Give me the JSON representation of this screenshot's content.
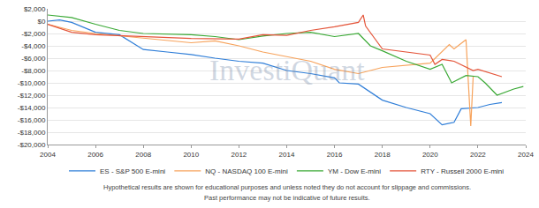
{
  "chart_data": {
    "type": "line",
    "annotations": [
      "InvestiQuant",
      "Hypothetical results are shown for educational purposes and unless noted they do not account for slippage and commissions.",
      "Past performance may not be indicative of future results."
    ],
    "series": [
      {
        "name": "ES - S&P 500 E-mini",
        "color": "#2f7ed8",
        "x": [
          2004,
          2004.5,
          2005,
          2006,
          2007,
          2008,
          2009,
          2010,
          2011,
          2012,
          2013,
          2014,
          2015,
          2016,
          2016.2,
          2017,
          2018,
          2019,
          2020,
          2020.5,
          2021,
          2021.3,
          2022,
          2022.5,
          2023
        ],
        "values": [
          0,
          200,
          -200,
          -1800,
          -2200,
          -4600,
          -5000,
          -5400,
          -6000,
          -6500,
          -6800,
          -8000,
          -8500,
          -9200,
          -10000,
          -10200,
          -12800,
          -14000,
          -15000,
          -16800,
          -16400,
          -14200,
          -14000,
          -13500,
          -13200
        ]
      },
      {
        "name": "NQ - NASDAQ 100 E-mini",
        "color": "#f7a35c",
        "x": [
          2004,
          2005,
          2006,
          2008,
          2010,
          2011,
          2012,
          2013,
          2014,
          2015,
          2016,
          2017,
          2018,
          2019,
          2020,
          2020.8,
          2021,
          2021.5,
          2021.7,
          2021.8
        ],
        "values": [
          -500,
          -1500,
          -2000,
          -2800,
          -3500,
          -3200,
          -4000,
          -5000,
          -5800,
          -6500,
          -7800,
          -8500,
          -7500,
          -7200,
          -6800,
          -3800,
          -4500,
          -3000,
          -17000,
          -9000
        ]
      },
      {
        "name": "YM - Dow E-mini",
        "color": "#3aa935",
        "x": [
          2004,
          2005,
          2006,
          2007,
          2008,
          2010,
          2011,
          2012,
          2013,
          2014,
          2015,
          2016,
          2017,
          2017.5,
          2018,
          2019,
          2020,
          2020.5,
          2020.9,
          2021.5,
          2022,
          2022.3,
          2022.8,
          2023.5,
          2023.9
        ],
        "values": [
          1000,
          600,
          -500,
          -1500,
          -2000,
          -2200,
          -2500,
          -3000,
          -2400,
          -2000,
          -1800,
          -2500,
          -2000,
          -4000,
          -4800,
          -6500,
          -7800,
          -7000,
          -10000,
          -8800,
          -9000,
          -10000,
          -12000,
          -11000,
          -10600
        ]
      },
      {
        "name": "RTY - Russell 2000 E-mini",
        "color": "#e4553a",
        "x": [
          2004,
          2005,
          2006,
          2008,
          2010,
          2012,
          2013,
          2014,
          2015,
          2016,
          2017,
          2017.2,
          2017.3,
          2018,
          2019,
          2020,
          2020.2,
          2020.5,
          2021,
          2021.8,
          2022,
          2023
        ],
        "values": [
          -500,
          -1800,
          -2200,
          -2500,
          -2800,
          -2900,
          -2200,
          -2300,
          -1500,
          -900,
          -200,
          1000,
          -800,
          -4500,
          -5000,
          -5500,
          -7000,
          -6200,
          -6500,
          -8000,
          -7800,
          -9000
        ]
      }
    ],
    "xlim": [
      2004,
      2024
    ],
    "xticks": [
      2004,
      2006,
      2008,
      2010,
      2012,
      2014,
      2016,
      2018,
      2020,
      2022,
      2024
    ],
    "ylim": [
      -20000,
      2000
    ],
    "yticks": [
      {
        "value": -20000,
        "label": "-$20,000"
      },
      {
        "value": -18000,
        "label": "-$18,000"
      },
      {
        "value": -16000,
        "label": "-$16,000"
      },
      {
        "value": -14000,
        "label": "-$14,000"
      },
      {
        "value": -12000,
        "label": "-$12,000"
      },
      {
        "value": -10000,
        "label": "-$10,000"
      },
      {
        "value": -8000,
        "label": "-$8,000"
      },
      {
        "value": -6000,
        "label": "-$6,000"
      },
      {
        "value": -4000,
        "label": "-$4,000"
      },
      {
        "value": -2000,
        "label": "-$2,000"
      },
      {
        "value": 0,
        "label": "$0"
      },
      {
        "value": 2000,
        "label": "$2,000"
      }
    ],
    "grid": true,
    "legend": "bottom"
  }
}
